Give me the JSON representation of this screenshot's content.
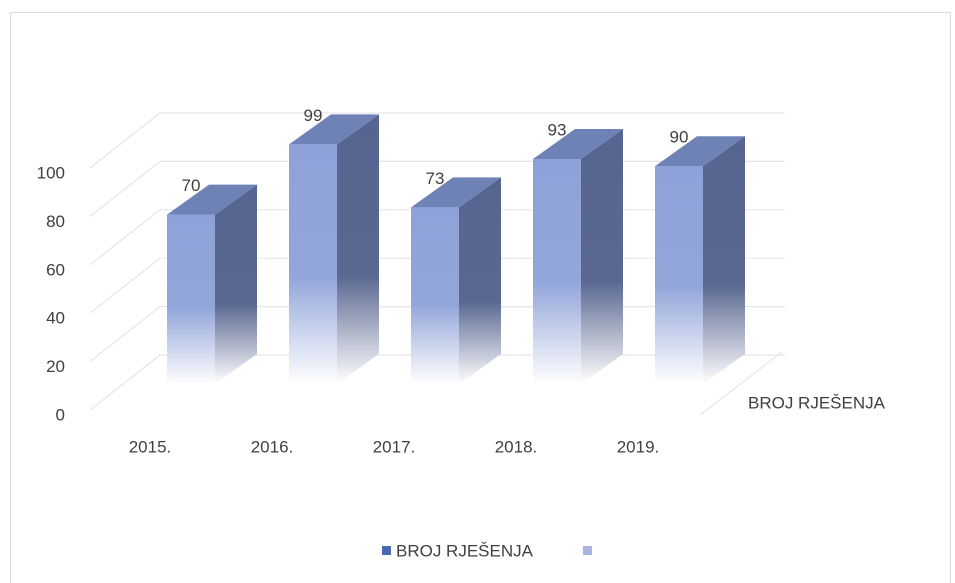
{
  "chart_data": {
    "type": "bar3d",
    "categories": [
      "2015.",
      "2016.",
      "2017.",
      "2018.",
      "2019."
    ],
    "series": [
      {
        "name": "BROJ RJEŠENJA",
        "color": "#4472c4",
        "values": [
          70,
          99,
          73,
          93,
          90
        ]
      }
    ],
    "ylim": [
      0,
      100
    ],
    "yticks": [
      0,
      20,
      40,
      60,
      80,
      100
    ],
    "grid": true,
    "legend": "bottom"
  }
}
